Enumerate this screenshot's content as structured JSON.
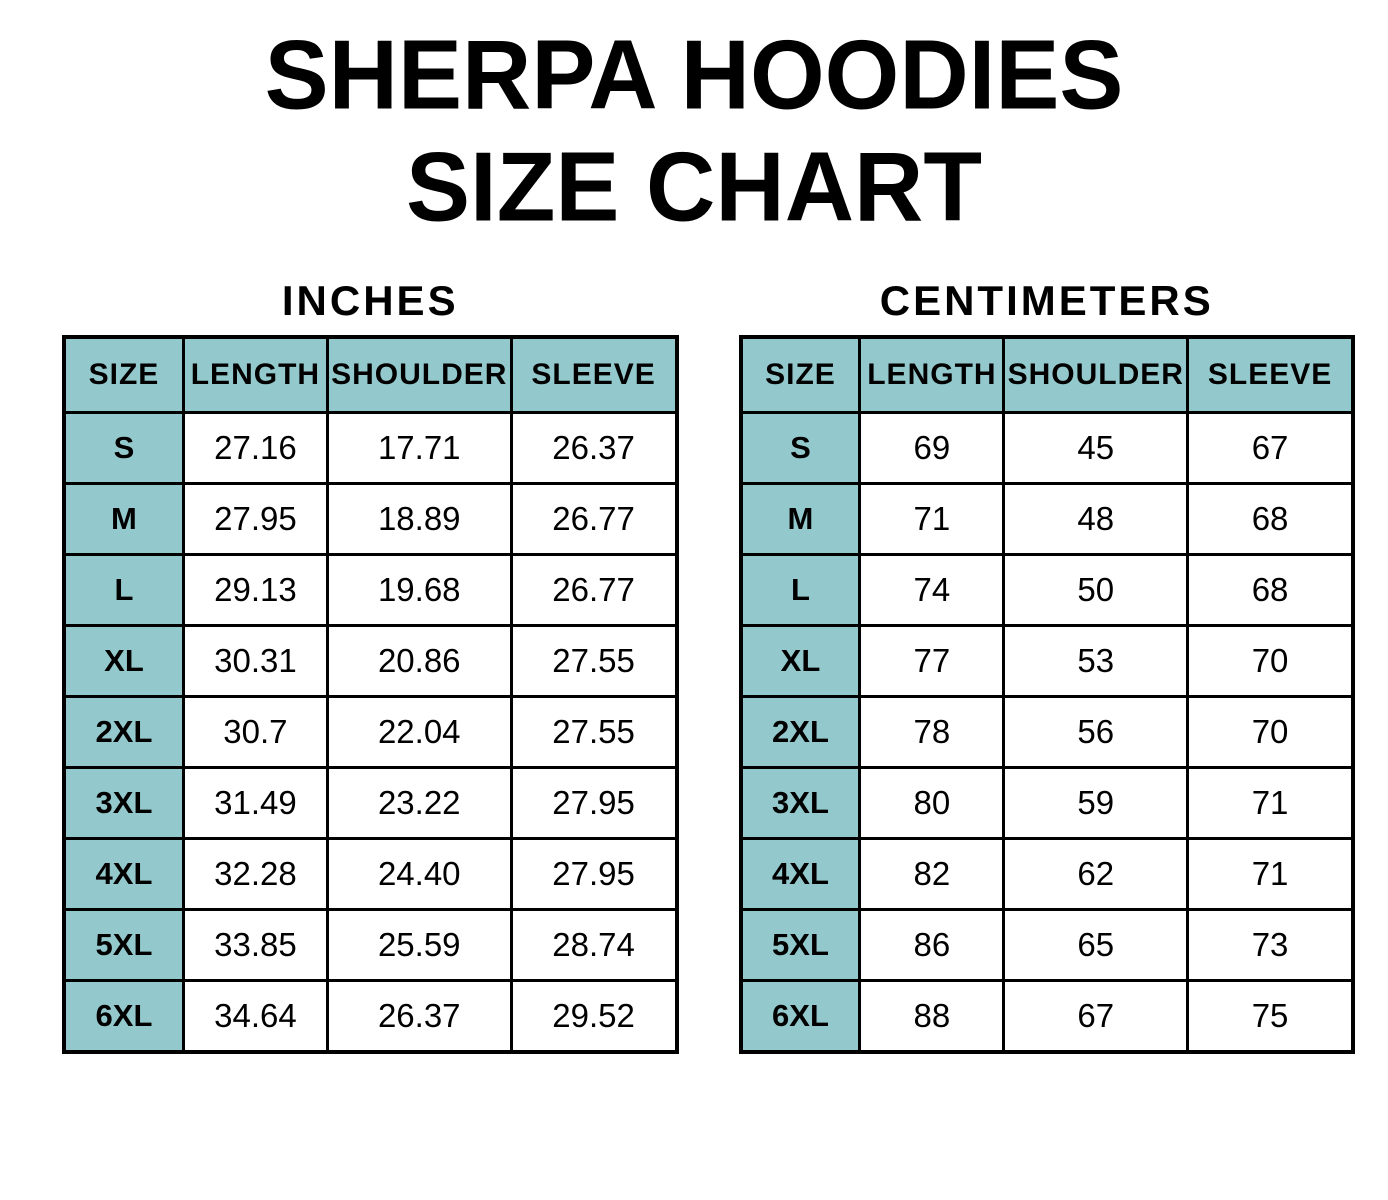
{
  "title": {
    "line1": "SHERPA HOODIES",
    "line2": "SIZE CHART"
  },
  "colors": {
    "header_bg": "#93C9CC",
    "border": "#000000",
    "text": "#000000",
    "background": "#FFFFFF"
  },
  "tables": [
    {
      "unit_label": "INCHES",
      "headers": [
        "SIZE",
        "LENGTH",
        "SHOULDER",
        "SLEEVE"
      ],
      "rows": [
        {
          "size": "S",
          "values": [
            "27.16",
            "17.71",
            "26.37"
          ]
        },
        {
          "size": "M",
          "values": [
            "27.95",
            "18.89",
            "26.77"
          ]
        },
        {
          "size": "L",
          "values": [
            "29.13",
            "19.68",
            "26.77"
          ]
        },
        {
          "size": "XL",
          "values": [
            "30.31",
            "20.86",
            "27.55"
          ]
        },
        {
          "size": "2XL",
          "values": [
            "30.7",
            "22.04",
            "27.55"
          ]
        },
        {
          "size": "3XL",
          "values": [
            "31.49",
            "23.22",
            "27.95"
          ]
        },
        {
          "size": "4XL",
          "values": [
            "32.28",
            "24.40",
            "27.95"
          ]
        },
        {
          "size": "5XL",
          "values": [
            "33.85",
            "25.59",
            "28.74"
          ]
        },
        {
          "size": "6XL",
          "values": [
            "34.64",
            "26.37",
            "29.52"
          ]
        }
      ]
    },
    {
      "unit_label": "CENTIMETERS",
      "headers": [
        "SIZE",
        "LENGTH",
        "SHOULDER",
        "SLEEVE"
      ],
      "rows": [
        {
          "size": "S",
          "values": [
            "69",
            "45",
            "67"
          ]
        },
        {
          "size": "M",
          "values": [
            "71",
            "48",
            "68"
          ]
        },
        {
          "size": "L",
          "values": [
            "74",
            "50",
            "68"
          ]
        },
        {
          "size": "XL",
          "values": [
            "77",
            "53",
            "70"
          ]
        },
        {
          "size": "2XL",
          "values": [
            "78",
            "56",
            "70"
          ]
        },
        {
          "size": "3XL",
          "values": [
            "80",
            "59",
            "71"
          ]
        },
        {
          "size": "4XL",
          "values": [
            "82",
            "62",
            "71"
          ]
        },
        {
          "size": "5XL",
          "values": [
            "86",
            "65",
            "73"
          ]
        },
        {
          "size": "6XL",
          "values": [
            "88",
            "67",
            "75"
          ]
        }
      ]
    }
  ],
  "chart_data": [
    {
      "type": "table",
      "title": "SHERPA HOODIES SIZE CHART — INCHES",
      "columns": [
        "SIZE",
        "LENGTH",
        "SHOULDER",
        "SLEEVE"
      ],
      "rows": [
        [
          "S",
          27.16,
          17.71,
          26.37
        ],
        [
          "M",
          27.95,
          18.89,
          26.77
        ],
        [
          "L",
          29.13,
          19.68,
          26.77
        ],
        [
          "XL",
          30.31,
          20.86,
          27.55
        ],
        [
          "2XL",
          30.7,
          22.04,
          27.55
        ],
        [
          "3XL",
          31.49,
          23.22,
          27.95
        ],
        [
          "4XL",
          32.28,
          24.4,
          27.95
        ],
        [
          "5XL",
          33.85,
          25.59,
          28.74
        ],
        [
          "6XL",
          34.64,
          26.37,
          29.52
        ]
      ]
    },
    {
      "type": "table",
      "title": "SHERPA HOODIES SIZE CHART — CENTIMETERS",
      "columns": [
        "SIZE",
        "LENGTH",
        "SHOULDER",
        "SLEEVE"
      ],
      "rows": [
        [
          "S",
          69,
          45,
          67
        ],
        [
          "M",
          71,
          48,
          68
        ],
        [
          "L",
          74,
          50,
          68
        ],
        [
          "XL",
          77,
          53,
          70
        ],
        [
          "2XL",
          78,
          56,
          70
        ],
        [
          "3XL",
          80,
          59,
          71
        ],
        [
          "4XL",
          82,
          62,
          71
        ],
        [
          "5XL",
          86,
          65,
          73
        ],
        [
          "6XL",
          88,
          67,
          75
        ]
      ]
    }
  ]
}
